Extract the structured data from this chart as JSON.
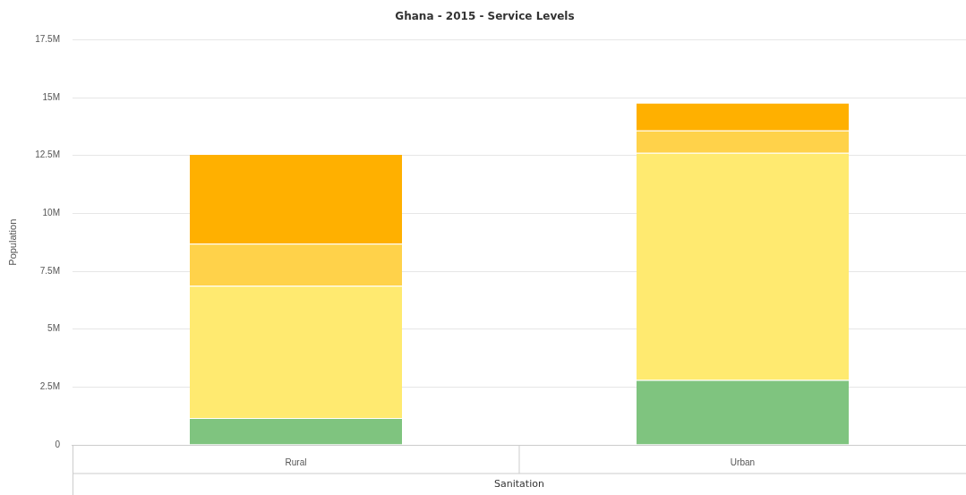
{
  "chart_data": {
    "type": "bar",
    "title": "Ghana - 2015 - Service Levels",
    "xlabel": "Sanitation",
    "ylabel": "Population",
    "categories": [
      "Rural",
      "Urban"
    ],
    "stacked": true,
    "series": [
      {
        "color": "#7fc47f",
        "values": [
          1160000,
          2800000
        ]
      },
      {
        "color": "#ffea70",
        "values": [
          5710000,
          9810000
        ]
      },
      {
        "color": "#ffd24a",
        "values": [
          1820000,
          970000
        ]
      },
      {
        "color": "#ffb000",
        "values": [
          3880000,
          1200000
        ]
      }
    ],
    "ylim": [
      0,
      17500000
    ],
    "yticks": [
      0,
      {
        "value": 2500000,
        "label": "2.5M"
      },
      {
        "value": 5000000,
        "label": "5M"
      },
      {
        "value": 7500000,
        "label": "7.5M"
      },
      {
        "value": 10000000,
        "label": "10M"
      },
      {
        "value": 12500000,
        "label": "12.5M"
      },
      {
        "value": 15000000,
        "label": "15M"
      },
      {
        "value": 17500000,
        "label": "17.5M"
      }
    ],
    "grid": "y",
    "legend": false
  }
}
